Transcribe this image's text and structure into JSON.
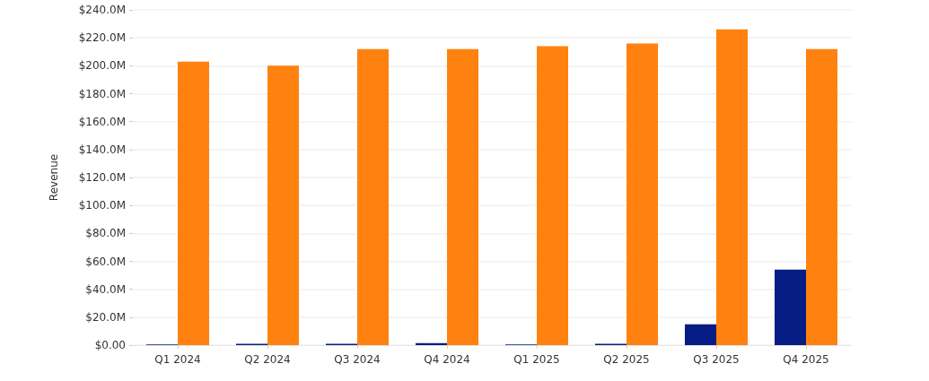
{
  "chart_data": {
    "type": "bar",
    "ylabel": "Revenue",
    "categories": [
      "Q1 2024",
      "Q2 2024",
      "Q3 2024",
      "Q4 2024",
      "Q1 2025",
      "Q2 2025",
      "Q3 2025",
      "Q4 2025"
    ],
    "series": [
      {
        "color": "#041c83",
        "values": [
          0.5,
          1,
          1,
          1.5,
          0.5,
          1,
          15,
          54
        ]
      },
      {
        "color": "#ff8210",
        "values": [
          203,
          200,
          212,
          212,
          214,
          216,
          226,
          212
        ]
      }
    ],
    "ylim": [
      0,
      240
    ],
    "yticks": [
      {
        "value": 0,
        "label": "$0.00"
      },
      {
        "value": 20,
        "label": "$20.0M"
      },
      {
        "value": 40,
        "label": "$40.0M"
      },
      {
        "value": 60,
        "label": "$60.0M"
      },
      {
        "value": 80,
        "label": "$80.0M"
      },
      {
        "value": 100,
        "label": "$100.0M"
      },
      {
        "value": 120,
        "label": "$120.0M"
      },
      {
        "value": 140,
        "label": "$140.0M"
      },
      {
        "value": 160,
        "label": "$160.0M"
      },
      {
        "value": 180,
        "label": "$180.0M"
      },
      {
        "value": 200,
        "label": "$200.0M"
      },
      {
        "value": 220,
        "label": "$220.0M"
      },
      {
        "value": 240,
        "label": "$240.0M"
      }
    ],
    "grid": "y"
  }
}
